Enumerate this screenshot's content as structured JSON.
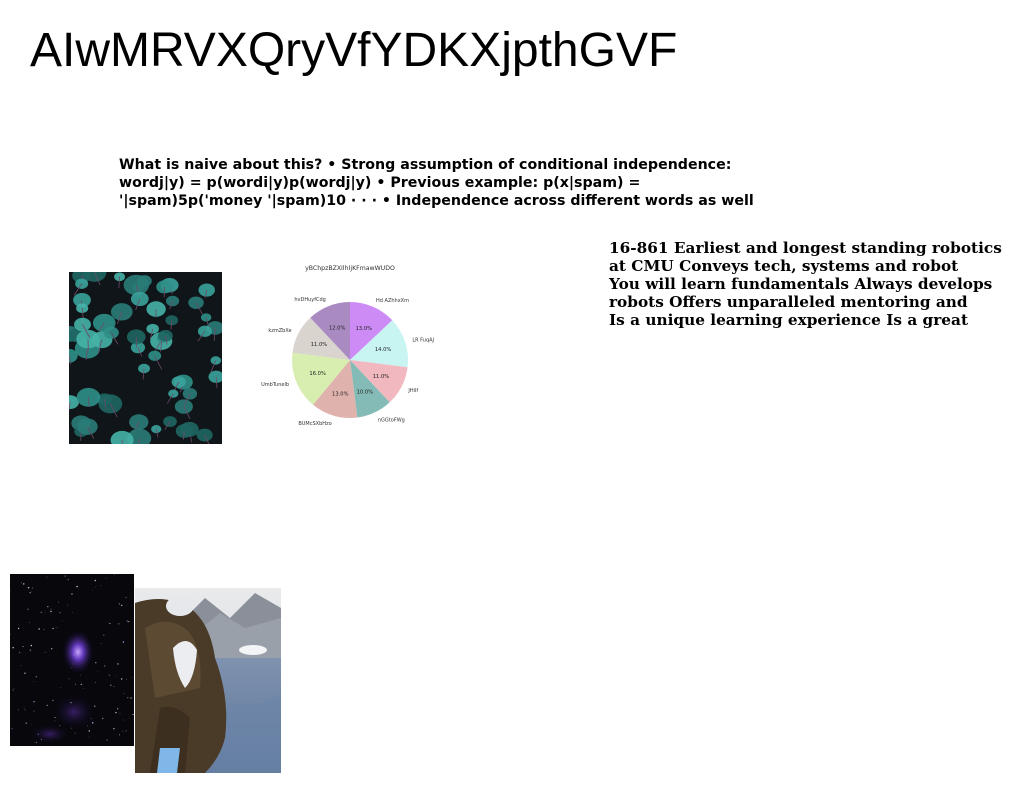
{
  "slide": {
    "title": "AIwMRVXQryVfYDKXjpthGVF",
    "bold_paragraph": [
      "What is naive about this? • Strong assumption of conditional independence:",
      "wordj|y) = p(wordi|y)p(wordj|y) • Previous example: p(x|spam) =",
      "'|spam)5p('money '|spam)10 · · · • Independence across different words as well"
    ],
    "side_paragraph": [
      "16-861 Earliest and longest standing robotics",
      "at CMU Conveys tech, systems and robot",
      "You will learn fundamentals Always develops",
      "robots Offers unparalleled mentoring and",
      "Is a unique learning experience Is a great"
    ]
  },
  "images": {
    "leaves_photo": "leaves-photo",
    "nebula_photo": "nebula-photo",
    "hiker_photo": "hiker-photo"
  },
  "chart_data": {
    "type": "pie",
    "title": "yBChpzBZXIlhIjKFmawWUDO",
    "categories": [
      "Hd AZhhxXm",
      "LR FuqAJ",
      "JHilf",
      "nGGtoFWg",
      "BUMcSXbHzo",
      "UmbTunelb",
      "kzmZbXe",
      "hvDHuyfCdg"
    ],
    "values": [
      13.0,
      14.0,
      11.0,
      10.0,
      13.0,
      16.0,
      11.0,
      12.0
    ],
    "value_labels": [
      "13.0%",
      "14.0%",
      "11.0%",
      "10.0%",
      "13.0%",
      "16.0%",
      "11.0%",
      "12.0%"
    ],
    "colors": [
      "#cd8cf5",
      "#c8f5f2",
      "#f2b8c0",
      "#85bbb6",
      "#e0b2ad",
      "#d8edb0",
      "#d9d4cd",
      "#a98bc2"
    ],
    "start_angle_deg": 90,
    "direction": "clockwise",
    "legend": "none"
  }
}
